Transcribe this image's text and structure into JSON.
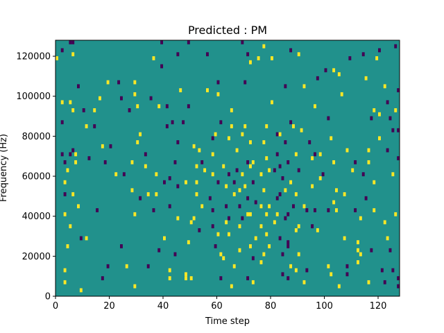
{
  "chart_data": {
    "type": "heatmap",
    "title": "Predicted : PM",
    "xlabel": "Time step",
    "ylabel": "Frequency (Hz)",
    "xlim": [
      0,
      128
    ],
    "ylim": [
      0,
      128000
    ],
    "x_ticks": [
      0,
      20,
      40,
      60,
      80,
      100,
      120
    ],
    "y_ticks": [
      0,
      20000,
      40000,
      60000,
      80000,
      100000,
      120000
    ],
    "n_time_steps": 128,
    "n_freq_bins": 64,
    "freq_bin_hz": 2000,
    "value_scale": [
      "low",
      "mid",
      "high"
    ],
    "colors": {
      "background": "#21918c",
      "low": "#440154",
      "high": "#fde725"
    },
    "cells": [
      [
        0,
        118000,
        "high"
      ],
      [
        1,
        2000,
        "mid"
      ],
      [
        2,
        122000,
        "low"
      ],
      [
        2,
        96000,
        "high"
      ],
      [
        2,
        86000,
        "low"
      ],
      [
        2,
        70000,
        "low"
      ],
      [
        3,
        66000,
        "low"
      ],
      [
        3,
        56000,
        "high"
      ],
      [
        3,
        50000,
        "low"
      ],
      [
        3,
        40000,
        "high"
      ],
      [
        3,
        12000,
        "high"
      ],
      [
        3,
        6000,
        "high"
      ],
      [
        4,
        62000,
        "high"
      ],
      [
        4,
        24000,
        "high"
      ],
      [
        5,
        126000,
        "low"
      ],
      [
        5,
        96000,
        "high"
      ],
      [
        5,
        70000,
        "low"
      ],
      [
        5,
        34000,
        "high"
      ],
      [
        6,
        126000,
        "low"
      ],
      [
        6,
        120000,
        "high"
      ],
      [
        6,
        92000,
        "high"
      ],
      [
        6,
        72000,
        "low"
      ],
      [
        6,
        50000,
        "high"
      ],
      [
        7,
        70000,
        "high"
      ],
      [
        7,
        66000,
        "high"
      ],
      [
        8,
        104000,
        "low"
      ],
      [
        8,
        44000,
        "high"
      ],
      [
        9,
        28000,
        "low"
      ],
      [
        9,
        2000,
        "high"
      ],
      [
        10,
        92000,
        "low"
      ],
      [
        11,
        84000,
        "high"
      ],
      [
        11,
        28000,
        "high"
      ],
      [
        12,
        68000,
        "low"
      ],
      [
        14,
        92000,
        "high"
      ],
      [
        14,
        84000,
        "low"
      ],
      [
        15,
        42000,
        "low"
      ],
      [
        16,
        98000,
        "high"
      ],
      [
        17,
        74000,
        "high"
      ],
      [
        17,
        8000,
        "low"
      ],
      [
        18,
        66000,
        "low"
      ],
      [
        19,
        106000,
        "high"
      ],
      [
        19,
        14000,
        "low"
      ],
      [
        20,
        74000,
        "low"
      ],
      [
        22,
        60000,
        "high"
      ],
      [
        23,
        106000,
        "low"
      ],
      [
        24,
        98000,
        "low"
      ],
      [
        24,
        24000,
        "low"
      ],
      [
        25,
        60000,
        "low"
      ],
      [
        26,
        14000,
        "high"
      ],
      [
        27,
        92000,
        "low"
      ],
      [
        28,
        66000,
        "high"
      ],
      [
        28,
        52000,
        "high"
      ],
      [
        29,
        106000,
        "high"
      ],
      [
        29,
        40000,
        "high"
      ],
      [
        29,
        4000,
        "high"
      ],
      [
        29,
        100000,
        "high"
      ],
      [
        30,
        94000,
        "high"
      ],
      [
        30,
        76000,
        "high"
      ],
      [
        31,
        80000,
        "high"
      ],
      [
        31,
        48000,
        "low"
      ],
      [
        33,
        70000,
        "low"
      ],
      [
        33,
        64000,
        "high"
      ],
      [
        34,
        50000,
        "high"
      ],
      [
        34,
        14000,
        "low"
      ],
      [
        35,
        98000,
        "low"
      ],
      [
        36,
        118000,
        "high"
      ],
      [
        36,
        42000,
        "low"
      ],
      [
        37,
        60000,
        "high"
      ],
      [
        37,
        50000,
        "high"
      ],
      [
        38,
        94000,
        "high"
      ],
      [
        38,
        22000,
        "low"
      ],
      [
        39,
        126000,
        "low"
      ],
      [
        39,
        114000,
        "low"
      ],
      [
        40,
        56000,
        "low"
      ],
      [
        40,
        28000,
        "high"
      ],
      [
        41,
        94000,
        "low"
      ],
      [
        41,
        84000,
        "low"
      ],
      [
        42,
        58000,
        "low"
      ],
      [
        42,
        44000,
        "low"
      ],
      [
        42,
        8000,
        "high"
      ],
      [
        42,
        12000,
        "high"
      ],
      [
        43,
        86000,
        "low"
      ],
      [
        44,
        66000,
        "low"
      ],
      [
        44,
        20000,
        "low"
      ],
      [
        45,
        120000,
        "low"
      ],
      [
        45,
        76000,
        "low"
      ],
      [
        45,
        54000,
        "low"
      ],
      [
        45,
        38000,
        "high"
      ],
      [
        46,
        102000,
        "high"
      ],
      [
        47,
        86000,
        "low"
      ],
      [
        48,
        56000,
        "high"
      ],
      [
        48,
        10000,
        "high"
      ],
      [
        48,
        8000,
        "high"
      ],
      [
        49,
        126000,
        "low"
      ],
      [
        49,
        94000,
        "low"
      ],
      [
        49,
        26000,
        "high"
      ],
      [
        50,
        36000,
        "high"
      ],
      [
        50,
        8000,
        "high"
      ],
      [
        51,
        74000,
        "high"
      ],
      [
        51,
        38000,
        "high"
      ],
      [
        52,
        64000,
        "high"
      ],
      [
        52,
        56000,
        "high"
      ],
      [
        52,
        50000,
        "high"
      ],
      [
        53,
        72000,
        "high"
      ],
      [
        53,
        32000,
        "low"
      ],
      [
        54,
        44000,
        "high"
      ],
      [
        54,
        66000,
        "low"
      ],
      [
        55,
        62000,
        "high"
      ],
      [
        56,
        120000,
        "low"
      ],
      [
        56,
        102000,
        "high"
      ],
      [
        57,
        48000,
        "low"
      ],
      [
        58,
        78000,
        "low"
      ],
      [
        58,
        70000,
        "high"
      ],
      [
        58,
        60000,
        "high"
      ],
      [
        58,
        42000,
        "low"
      ],
      [
        58,
        34000,
        "low"
      ],
      [
        59,
        80000,
        "high"
      ],
      [
        59,
        24000,
        "low"
      ],
      [
        60,
        100000,
        "high"
      ],
      [
        60,
        106000,
        "low"
      ],
      [
        60,
        56000,
        "low"
      ],
      [
        60,
        30000,
        "high"
      ],
      [
        61,
        86000,
        "low"
      ],
      [
        61,
        20000,
        "high"
      ],
      [
        61,
        8000,
        "low"
      ],
      [
        62,
        64000,
        "high"
      ],
      [
        62,
        18000,
        "high"
      ],
      [
        63,
        54000,
        "high"
      ],
      [
        63,
        44000,
        "low"
      ],
      [
        63,
        36000,
        "high"
      ],
      [
        64,
        78000,
        "high"
      ],
      [
        64,
        60000,
        "low"
      ],
      [
        64,
        38000,
        "low"
      ],
      [
        64,
        30000,
        "high"
      ],
      [
        65,
        92000,
        "high"
      ],
      [
        65,
        84000,
        "high"
      ],
      [
        65,
        4000,
        "high"
      ],
      [
        66,
        56000,
        "low"
      ],
      [
        66,
        50000,
        "high"
      ],
      [
        66,
        14000,
        "high"
      ],
      [
        67,
        72000,
        "high"
      ],
      [
        67,
        62000,
        "low"
      ],
      [
        68,
        52000,
        "high"
      ],
      [
        68,
        44000,
        "low"
      ],
      [
        68,
        34000,
        "high"
      ],
      [
        68,
        22000,
        "high"
      ],
      [
        69,
        126000,
        "low"
      ],
      [
        69,
        80000,
        "high"
      ],
      [
        69,
        60000,
        "high"
      ],
      [
        69,
        38000,
        "low"
      ],
      [
        70,
        106000,
        "low"
      ],
      [
        70,
        84000,
        "high"
      ],
      [
        70,
        54000,
        "high"
      ],
      [
        71,
        120000,
        "low"
      ],
      [
        71,
        40000,
        "high"
      ],
      [
        71,
        66000,
        "low"
      ],
      [
        71,
        48000,
        "low"
      ],
      [
        71,
        8000,
        "low"
      ],
      [
        72,
        116000,
        "high"
      ],
      [
        72,
        76000,
        "high"
      ],
      [
        72,
        64000,
        "high"
      ],
      [
        72,
        40000,
        "high"
      ],
      [
        72,
        24000,
        "high"
      ],
      [
        73,
        66000,
        "high"
      ],
      [
        73,
        56000,
        "low"
      ],
      [
        73,
        18000,
        "low"
      ],
      [
        73,
        6000,
        "high"
      ],
      [
        74,
        46000,
        "low"
      ],
      [
        74,
        28000,
        "high"
      ],
      [
        75,
        118000,
        "high"
      ],
      [
        76,
        60000,
        "high"
      ],
      [
        76,
        44000,
        "high"
      ],
      [
        76,
        34000,
        "high"
      ],
      [
        76,
        16000,
        "high"
      ],
      [
        77,
        124000,
        "high"
      ],
      [
        77,
        76000,
        "high"
      ],
      [
        77,
        52000,
        "high"
      ],
      [
        77,
        20000,
        "high"
      ],
      [
        78,
        84000,
        "high"
      ],
      [
        78,
        68000,
        "high"
      ],
      [
        78,
        40000,
        "high"
      ],
      [
        78,
        30000,
        "high"
      ],
      [
        79,
        62000,
        "high"
      ],
      [
        79,
        44000,
        "high"
      ],
      [
        79,
        24000,
        "high"
      ],
      [
        80,
        118000,
        "high"
      ],
      [
        80,
        96000,
        "high"
      ],
      [
        81,
        62000,
        "low"
      ],
      [
        81,
        36000,
        "high"
      ],
      [
        82,
        80000,
        "low"
      ],
      [
        82,
        70000,
        "low"
      ],
      [
        82,
        48000,
        "low"
      ],
      [
        82,
        40000,
        "high"
      ],
      [
        83,
        80000,
        "high"
      ],
      [
        83,
        64000,
        "low"
      ],
      [
        83,
        50000,
        "low"
      ],
      [
        83,
        28000,
        "low"
      ],
      [
        84,
        58000,
        "low"
      ],
      [
        84,
        20000,
        "low"
      ],
      [
        84,
        10000,
        "low"
      ],
      [
        85,
        104000,
        "low"
      ],
      [
        85,
        76000,
        "low"
      ],
      [
        85,
        52000,
        "high"
      ],
      [
        85,
        38000,
        "low"
      ],
      [
        86,
        66000,
        "low"
      ],
      [
        86,
        40000,
        "low"
      ],
      [
        86,
        26000,
        "low"
      ],
      [
        86,
        8000,
        "low"
      ],
      [
        86,
        24000,
        "low"
      ],
      [
        87,
        86000,
        "low"
      ],
      [
        87,
        56000,
        "high"
      ],
      [
        87,
        14000,
        "high"
      ],
      [
        87,
        122000,
        "low"
      ],
      [
        88,
        84000,
        "high"
      ],
      [
        88,
        44000,
        "low"
      ],
      [
        89,
        70000,
        "high"
      ],
      [
        89,
        50000,
        "high"
      ],
      [
        89,
        32000,
        "high"
      ],
      [
        89,
        12000,
        "high"
      ],
      [
        90,
        120000,
        "high"
      ],
      [
        90,
        62000,
        "low"
      ],
      [
        90,
        34000,
        "high"
      ],
      [
        90,
        20000,
        "high"
      ],
      [
        91,
        82000,
        "high"
      ],
      [
        92,
        104000,
        "high"
      ],
      [
        92,
        44000,
        "high"
      ],
      [
        92,
        6000,
        "high"
      ],
      [
        93,
        42000,
        "low"
      ],
      [
        93,
        12000,
        "low"
      ],
      [
        94,
        76000,
        "low"
      ],
      [
        95,
        68000,
        "high"
      ],
      [
        95,
        54000,
        "high"
      ],
      [
        95,
        34000,
        "low"
      ],
      [
        96,
        94000,
        "high"
      ],
      [
        96,
        70000,
        "low"
      ],
      [
        96,
        42000,
        "low"
      ],
      [
        97,
        108000,
        "low"
      ],
      [
        97,
        32000,
        "high"
      ],
      [
        98,
        70000,
        "high"
      ],
      [
        98,
        58000,
        "high"
      ],
      [
        99,
        60000,
        "low"
      ],
      [
        100,
        112000,
        "low"
      ],
      [
        101,
        88000,
        "low"
      ],
      [
        101,
        42000,
        "low"
      ],
      [
        101,
        14000,
        "high"
      ],
      [
        102,
        78000,
        "high"
      ],
      [
        102,
        10000,
        "high"
      ],
      [
        103,
        112000,
        "high"
      ],
      [
        103,
        66000,
        "high"
      ],
      [
        103,
        46000,
        "high"
      ],
      [
        104,
        52000,
        "high"
      ],
      [
        104,
        42000,
        "high"
      ],
      [
        105,
        4000,
        "high"
      ],
      [
        105,
        110000,
        "high"
      ],
      [
        106,
        100000,
        "high"
      ],
      [
        107,
        50000,
        "high"
      ],
      [
        107,
        28000,
        "high"
      ],
      [
        108,
        72000,
        "high"
      ],
      [
        108,
        14000,
        "low"
      ],
      [
        108,
        10000,
        "low"
      ],
      [
        109,
        118000,
        "low"
      ],
      [
        110,
        62000,
        "high"
      ],
      [
        111,
        66000,
        "low"
      ],
      [
        111,
        42000,
        "low"
      ],
      [
        112,
        26000,
        "high"
      ],
      [
        112,
        16000,
        "high"
      ],
      [
        112,
        22000,
        "high"
      ],
      [
        113,
        38000,
        "high"
      ],
      [
        113,
        20000,
        "high"
      ],
      [
        114,
        120000,
        "low"
      ],
      [
        114,
        60000,
        "low"
      ],
      [
        115,
        108000,
        "high"
      ],
      [
        115,
        48000,
        "low"
      ],
      [
        116,
        72000,
        "high"
      ],
      [
        116,
        6000,
        "high"
      ],
      [
        116,
        66000,
        "high"
      ],
      [
        117,
        22000,
        "low"
      ],
      [
        117,
        88000,
        "low"
      ],
      [
        118,
        92000,
        "high"
      ],
      [
        118,
        42000,
        "high"
      ],
      [
        118,
        56000,
        "high"
      ],
      [
        119,
        118000,
        "high"
      ],
      [
        120,
        78000,
        "high"
      ],
      [
        120,
        90000,
        "high"
      ],
      [
        120,
        122000,
        "low"
      ],
      [
        121,
        12000,
        "low"
      ],
      [
        122,
        104000,
        "high"
      ],
      [
        122,
        36000,
        "high"
      ],
      [
        122,
        6000,
        "low"
      ],
      [
        123,
        96000,
        "low"
      ],
      [
        123,
        72000,
        "low"
      ],
      [
        123,
        28000,
        "high"
      ],
      [
        124,
        88000,
        "low"
      ],
      [
        124,
        22000,
        "low"
      ],
      [
        125,
        82000,
        "low"
      ],
      [
        125,
        60000,
        "high"
      ],
      [
        125,
        12000,
        "low"
      ],
      [
        126,
        124000,
        "low"
      ],
      [
        126,
        92000,
        "high"
      ],
      [
        126,
        40000,
        "high"
      ],
      [
        127,
        102000,
        "low"
      ],
      [
        127,
        82000,
        "low"
      ],
      [
        127,
        68000,
        "low"
      ],
      [
        127,
        8000,
        "low"
      ],
      [
        127,
        4000,
        "low"
      ]
    ]
  }
}
